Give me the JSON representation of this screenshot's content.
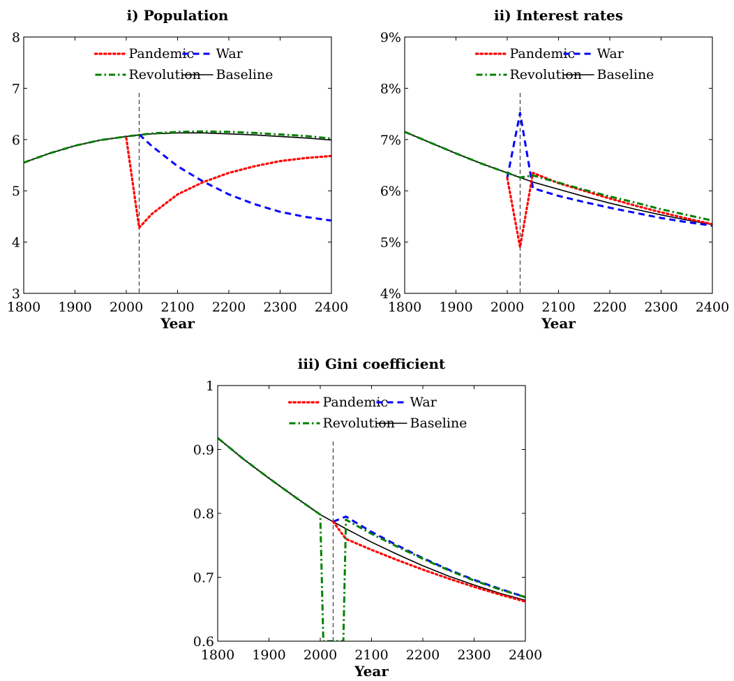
{
  "chart_data": [
    {
      "type": "line",
      "title": "i) Population",
      "xlabel": "Year",
      "ylabel": "",
      "xlim": [
        1800,
        2400
      ],
      "ylim": [
        3,
        8
      ],
      "xticks": [
        1800,
        1900,
        2000,
        2100,
        2200,
        2300,
        2400
      ],
      "yticks": [
        3,
        4,
        5,
        6,
        7,
        8
      ],
      "ytick_labels": [
        "3",
        "4",
        "5",
        "6",
        "7",
        "8"
      ],
      "legend_position": "top",
      "vline_x": 2025,
      "series": [
        {
          "name": "Pandemic",
          "color": "#ff0000",
          "style": "dotted",
          "points": [
            [
              2000,
              6.03
            ],
            [
              2025,
              4.28
            ],
            [
              2050,
              4.55
            ],
            [
              2100,
              4.93
            ],
            [
              2150,
              5.17
            ],
            [
              2200,
              5.35
            ],
            [
              2250,
              5.48
            ],
            [
              2300,
              5.58
            ],
            [
              2350,
              5.64
            ],
            [
              2400,
              5.68
            ]
          ]
        },
        {
          "name": "War",
          "color": "#0000ff",
          "style": "dashed",
          "points": [
            [
              2025,
              6.1
            ],
            [
              2050,
              5.87
            ],
            [
              2100,
              5.48
            ],
            [
              2150,
              5.18
            ],
            [
              2200,
              4.93
            ],
            [
              2250,
              4.74
            ],
            [
              2300,
              4.59
            ],
            [
              2350,
              4.49
            ],
            [
              2400,
              4.42
            ]
          ]
        },
        {
          "name": "Revolution",
          "color": "#008000",
          "style": "dashdot",
          "points": [
            [
              1800,
              5.55
            ],
            [
              1850,
              5.73
            ],
            [
              1900,
              5.88
            ],
            [
              1950,
              5.99
            ],
            [
              2000,
              6.06
            ],
            [
              2025,
              6.09
            ],
            [
              2050,
              6.12
            ],
            [
              2100,
              6.15
            ],
            [
              2150,
              6.16
            ],
            [
              2200,
              6.15
            ],
            [
              2250,
              6.13
            ],
            [
              2300,
              6.1
            ],
            [
              2350,
              6.07
            ],
            [
              2400,
              6.02
            ]
          ]
        },
        {
          "name": "Baseline",
          "color": "#000000",
          "style": "solid",
          "points": [
            [
              1800,
              5.55
            ],
            [
              1850,
              5.73
            ],
            [
              1900,
              5.88
            ],
            [
              1950,
              5.99
            ],
            [
              2000,
              6.06
            ],
            [
              2025,
              6.09
            ],
            [
              2050,
              6.11
            ],
            [
              2100,
              6.13
            ],
            [
              2150,
              6.13
            ],
            [
              2200,
              6.11
            ],
            [
              2250,
              6.09
            ],
            [
              2300,
              6.06
            ],
            [
              2350,
              6.03
            ],
            [
              2400,
              5.99
            ]
          ]
        }
      ]
    },
    {
      "type": "line",
      "title": "ii) Interest rates",
      "xlabel": "Year",
      "ylabel": "",
      "xlim": [
        1800,
        2400
      ],
      "ylim": [
        4,
        9
      ],
      "xticks": [
        1800,
        1900,
        2000,
        2100,
        2200,
        2300,
        2400
      ],
      "yticks": [
        4,
        5,
        6,
        7,
        8,
        9
      ],
      "ytick_labels": [
        "4%",
        "5%",
        "6%",
        "7%",
        "8%",
        "9%"
      ],
      "legend_position": "top",
      "vline_x": 2025,
      "series": [
        {
          "name": "Pandemic",
          "color": "#ff0000",
          "style": "dotted",
          "points": [
            [
              2000,
              6.25
            ],
            [
              2025,
              4.9
            ],
            [
              2050,
              6.35
            ],
            [
              2100,
              6.15
            ],
            [
              2150,
              6.0
            ],
            [
              2200,
              5.85
            ],
            [
              2250,
              5.71
            ],
            [
              2300,
              5.58
            ],
            [
              2350,
              5.46
            ],
            [
              2400,
              5.35
            ]
          ]
        },
        {
          "name": "War",
          "color": "#0000ff",
          "style": "dashed",
          "points": [
            [
              2000,
              6.25
            ],
            [
              2025,
              7.52
            ],
            [
              2050,
              6.05
            ],
            [
              2100,
              5.9
            ],
            [
              2150,
              5.78
            ],
            [
              2200,
              5.67
            ],
            [
              2250,
              5.57
            ],
            [
              2300,
              5.47
            ],
            [
              2350,
              5.39
            ],
            [
              2400,
              5.32
            ]
          ]
        },
        {
          "name": "Revolution",
          "color": "#008000",
          "style": "dashdot",
          "points": [
            [
              1800,
              7.15
            ],
            [
              1850,
              6.94
            ],
            [
              1900,
              6.73
            ],
            [
              1950,
              6.53
            ],
            [
              2000,
              6.35
            ],
            [
              2025,
              6.26
            ],
            [
              2050,
              6.3
            ],
            [
              2100,
              6.16
            ],
            [
              2150,
              6.02
            ],
            [
              2200,
              5.89
            ],
            [
              2250,
              5.77
            ],
            [
              2300,
              5.64
            ],
            [
              2350,
              5.53
            ],
            [
              2400,
              5.42
            ]
          ]
        },
        {
          "name": "Baseline",
          "color": "#000000",
          "style": "solid",
          "points": [
            [
              1800,
              7.15
            ],
            [
              1850,
              6.94
            ],
            [
              1900,
              6.73
            ],
            [
              1950,
              6.53
            ],
            [
              2000,
              6.35
            ],
            [
              2025,
              6.26
            ],
            [
              2050,
              6.17
            ],
            [
              2100,
              6.03
            ],
            [
              2150,
              5.89
            ],
            [
              2200,
              5.76
            ],
            [
              2250,
              5.64
            ],
            [
              2300,
              5.53
            ],
            [
              2350,
              5.43
            ],
            [
              2400,
              5.34
            ]
          ]
        }
      ]
    },
    {
      "type": "line",
      "title": "iii) Gini coefficient",
      "xlabel": "Year",
      "ylabel": "",
      "xlim": [
        1800,
        2400
      ],
      "ylim": [
        0.6,
        1.0
      ],
      "xticks": [
        1800,
        1900,
        2000,
        2100,
        2200,
        2300,
        2400
      ],
      "yticks": [
        0.6,
        0.7,
        0.8,
        0.9,
        1.0
      ],
      "ytick_labels": [
        "0.6",
        "0.7",
        "0.8",
        "0.9",
        "1"
      ],
      "legend_position": "top",
      "vline_x": 2025,
      "series": [
        {
          "name": "Pandemic",
          "color": "#ff0000",
          "style": "dotted",
          "points": [
            [
              2025,
              0.787
            ],
            [
              2050,
              0.76
            ],
            [
              2100,
              0.743
            ],
            [
              2150,
              0.727
            ],
            [
              2200,
              0.712
            ],
            [
              2250,
              0.698
            ],
            [
              2300,
              0.685
            ],
            [
              2350,
              0.673
            ],
            [
              2400,
              0.662
            ]
          ]
        },
        {
          "name": "War",
          "color": "#0000ff",
          "style": "dashed",
          "points": [
            [
              2025,
              0.787
            ],
            [
              2050,
              0.795
            ],
            [
              2100,
              0.771
            ],
            [
              2150,
              0.75
            ],
            [
              2200,
              0.73
            ],
            [
              2250,
              0.712
            ],
            [
              2300,
              0.696
            ],
            [
              2350,
              0.682
            ],
            [
              2400,
              0.669
            ]
          ]
        },
        {
          "name": "Revolution",
          "color": "#008000",
          "style": "dashdot",
          "points": [
            [
              1800,
              0.918
            ],
            [
              1850,
              0.885
            ],
            [
              1900,
              0.855
            ],
            [
              1950,
              0.826
            ],
            [
              2000,
              0.798
            ],
            [
              2006,
              0.6
            ],
            [
              2045,
              0.6
            ],
            [
              2050,
              0.79
            ],
            [
              2100,
              0.768
            ],
            [
              2150,
              0.748
            ],
            [
              2200,
              0.729
            ],
            [
              2250,
              0.711
            ],
            [
              2300,
              0.695
            ],
            [
              2350,
              0.681
            ],
            [
              2400,
              0.669
            ]
          ]
        },
        {
          "name": "Baseline",
          "color": "#000000",
          "style": "solid",
          "points": [
            [
              1800,
              0.918
            ],
            [
              1850,
              0.885
            ],
            [
              1900,
              0.855
            ],
            [
              1950,
              0.826
            ],
            [
              2000,
              0.798
            ],
            [
              2025,
              0.787
            ],
            [
              2050,
              0.776
            ],
            [
              2100,
              0.755
            ],
            [
              2150,
              0.736
            ],
            [
              2200,
              0.718
            ],
            [
              2250,
              0.702
            ],
            [
              2300,
              0.688
            ],
            [
              2350,
              0.675
            ],
            [
              2400,
              0.664
            ]
          ]
        }
      ]
    }
  ]
}
